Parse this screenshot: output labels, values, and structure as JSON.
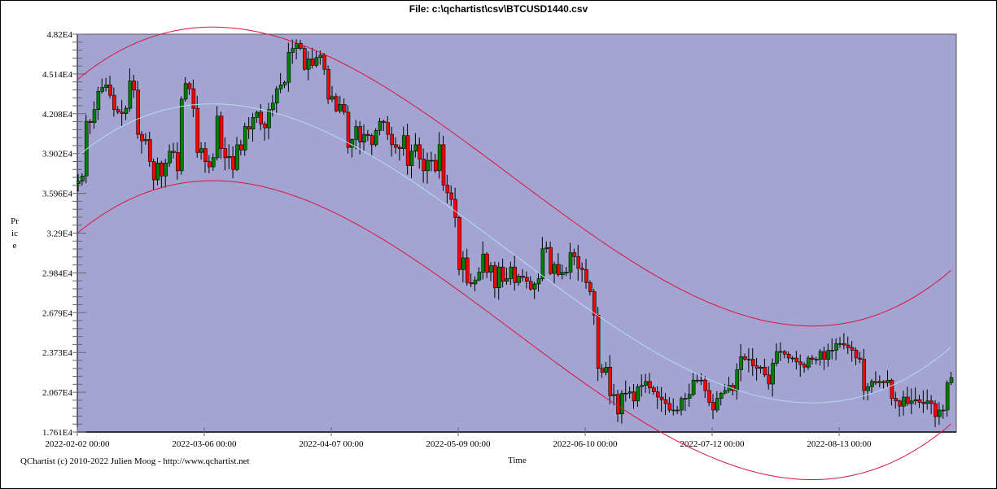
{
  "window": {
    "title": "File: c:\\qchartist\\csv\\BTCUSD1440.csv"
  },
  "footer": "QChartist (c) 2010-2022 Julien Moog - http://www.qchartist.net",
  "chart_data": {
    "type": "candlestick",
    "title": "File: c:\\qchartist\\csv\\BTCUSD1440.csv",
    "xlabel": "Time",
    "ylabel": "Price",
    "ylim": [
      17610,
      48200
    ],
    "y_ticks": [
      "4.82E4",
      "4.514E4",
      "4.208E4",
      "3.902E4",
      "3.596E4",
      "3.29E4",
      "2.984E4",
      "2.679E4",
      "2.373E4",
      "2.067E4",
      "1.761E4"
    ],
    "x_ticks": [
      "2022-02-02 00:00",
      "2022-03-06 00:00",
      "2022-04-07 00:00",
      "2022-05-09 00:00",
      "2022-06-10 00:00",
      "2022-07-12 00:00",
      "2022-08-13 00:00"
    ],
    "x_start": "2022-02-02",
    "interval": "1 day",
    "close": [
      36.9,
      37.3,
      41.5,
      41.4,
      42.4,
      43.8,
      44.1,
      44.3,
      43.5,
      42.4,
      42.2,
      42.1,
      42.5,
      44.6,
      43.9,
      40.5,
      40.0,
      40.1,
      38.4,
      37.0,
      38.3,
      37.3,
      38.3,
      39.2,
      39.1,
      37.7,
      43.2,
      44.4,
      44.0,
      42.5,
      39.1,
      39.4,
      38.4,
      38.0,
      38.7,
      41.9,
      39.4,
      38.7,
      38.8,
      37.8,
      39.7,
      39.3,
      41.1,
      40.9,
      41.8,
      42.2,
      41.3,
      41.0,
      42.4,
      42.9,
      44.0,
      44.3,
      44.5,
      46.8,
      47.1,
      47.5,
      47.1,
      45.5,
      46.3,
      45.8,
      46.4,
      46.6,
      45.5,
      43.2,
      43.4,
      42.3,
      42.8,
      42.2,
      39.5,
      40.1,
      41.1,
      39.9,
      40.5,
      40.4,
      39.7,
      40.8,
      41.5,
      41.4,
      40.5,
      39.7,
      39.5,
      39.4,
      40.4,
      38.1,
      39.2,
      39.7,
      38.6,
      37.7,
      38.5,
      38.5,
      37.7,
      39.7,
      36.6,
      36.0,
      35.5,
      34.1,
      30.1,
      31.0,
      29.1,
      29.0,
      29.3,
      29.9,
      31.3,
      29.9,
      30.4,
      28.7,
      30.3,
      29.2,
      29.4,
      30.3,
      29.1,
      29.6,
      29.5,
      29.2,
      28.6,
      29.0,
      29.4,
      31.7,
      31.8,
      29.8,
      30.5,
      29.7,
      29.9,
      29.9,
      31.4,
      31.1,
      30.2,
      30.1,
      29.1,
      28.4,
      26.6,
      22.5,
      22.2,
      22.6,
      20.4,
      20.5,
      19.0,
      20.6,
      20.6,
      20.7,
      20.0,
      21.1,
      21.2,
      21.5,
      21.0,
      20.7,
      20.3,
      20.1,
      19.8,
      19.3,
      19.3,
      19.3,
      20.2,
      20.2,
      20.5,
      21.6,
      21.6,
      21.6,
      20.8,
      19.9,
      19.3,
      20.2,
      20.6,
      20.8,
      21.2,
      20.8,
      22.4,
      23.4,
      23.2,
      23.2,
      22.7,
      22.5,
      22.6,
      22.0,
      21.3,
      22.9,
      23.8,
      23.8,
      23.6,
      23.3,
      23.3,
      23.0,
      22.8,
      22.6,
      23.3,
      23.2,
      23.2,
      23.8,
      23.2,
      23.9,
      23.9,
      24.4,
      24.4,
      24.3,
      24.1,
      23.9,
      23.3,
      23.2,
      20.8,
      21.1,
      21.5,
      21.4,
      21.5,
      21.4,
      21.6,
      20.2,
      20.0,
      19.6,
      20.3,
      19.8,
      20.0,
      20.1,
      19.9,
      19.8,
      20.0,
      19.8,
      18.8,
      19.3,
      19.3,
      21.4,
      21.8
    ],
    "close_unit": "thousand USD",
    "indicators": [
      "regression curve",
      "upper band",
      "lower band"
    ],
    "colors": {
      "background": "#a3a4d2",
      "up": "#008000",
      "down": "#ff0000",
      "bands": "#dc143c",
      "regression": "#b4dcea"
    },
    "grid": false
  }
}
